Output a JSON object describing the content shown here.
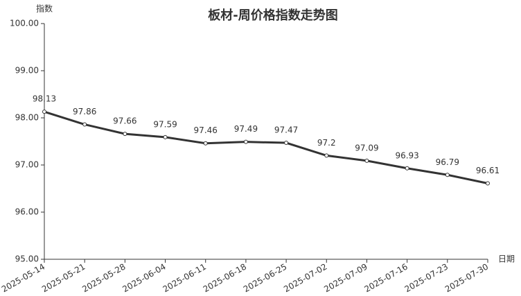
{
  "chart_data": {
    "type": "line",
    "title": "板材-周价格指数走势图",
    "y_axis_label": "指数",
    "x_axis_label": "日期",
    "categories": [
      "2025-05-14",
      "2025-05-21",
      "2025-05-28",
      "2025-06-04",
      "2025-06-11",
      "2025-06-18",
      "2025-06-25",
      "2025-07-02",
      "2025-07-09",
      "2025-07-16",
      "2025-07-23",
      "2025-07-30"
    ],
    "series": [
      {
        "name": "板材",
        "color": "#333333",
        "values": [
          98.13,
          97.86,
          97.66,
          97.59,
          97.46,
          97.49,
          97.47,
          97.2,
          97.09,
          96.93,
          96.79,
          96.61
        ]
      }
    ],
    "ylim": [
      95,
      100
    ],
    "yticks": [
      {
        "value": 95,
        "label": "95.00"
      },
      {
        "value": 96,
        "label": "96.00"
      },
      {
        "value": 97,
        "label": "97.00"
      },
      {
        "value": 98,
        "label": "98.00"
      },
      {
        "value": 99,
        "label": "99.00"
      },
      {
        "value": 100,
        "label": "100.00"
      }
    ],
    "grid": false
  }
}
